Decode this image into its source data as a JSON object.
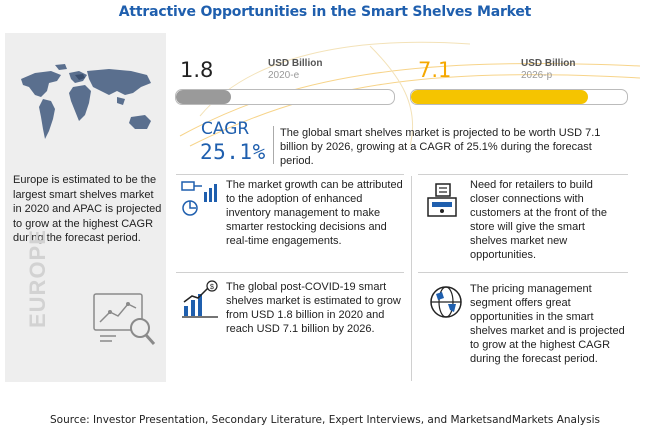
{
  "title": "Attractive Opportunities in the Smart Shelves Market",
  "left_panel": {
    "text": "Europe is estimated to be the largest smart shelves market in 2020 and APAC is projected to grow at the highest CAGR during the forecast period.",
    "region_label": "EUROPE"
  },
  "kpi_2020": {
    "value": "1.8",
    "unit": "USD Billion",
    "year": "2020-e",
    "bar_fill_fraction": 0.25,
    "bar_color": "#9a9a9a"
  },
  "kpi_2026": {
    "value": "7.1",
    "unit": "USD Billion",
    "year": "2026-p",
    "bar_fill_fraction": 0.82,
    "bar_color": "#f5c400"
  },
  "cagr": {
    "label": "CAGR",
    "value": "25.1%",
    "text": "The global smart shelves market is projected to be worth USD 7.1 billion by 2026, growing at a CAGR of 25.1% during the forecast period."
  },
  "insights": [
    {
      "icon": "flowchart-icon",
      "text": "The market growth can be attributed to the adoption of enhanced inventory management to make smarter restocking decisions and real-time engagements."
    },
    {
      "icon": "cash-register-icon",
      "text": "Need for retailers to build closer connections with customers at the front of the store will give the smart shelves market new opportunities."
    },
    {
      "icon": "growth-chart-icon",
      "text": "The global post-COVID-19 smart shelves market is estimated to grow from USD 1.8 billion in 2020 and reach USD 7.1 billion by 2026."
    },
    {
      "icon": "globe-icon",
      "text": "The pricing management segment offers great opportunities in the smart shelves market and is projected to grow at the highest CAGR during the forecast period."
    }
  ],
  "source": "Source: Investor Presentation, Secondary Literature, Expert Interviews, and MarketsandMarkets Analysis",
  "colors": {
    "title_blue": "#1f5fae",
    "accent_orange": "#f5a800",
    "panel_gray": "#eeeeee"
  }
}
